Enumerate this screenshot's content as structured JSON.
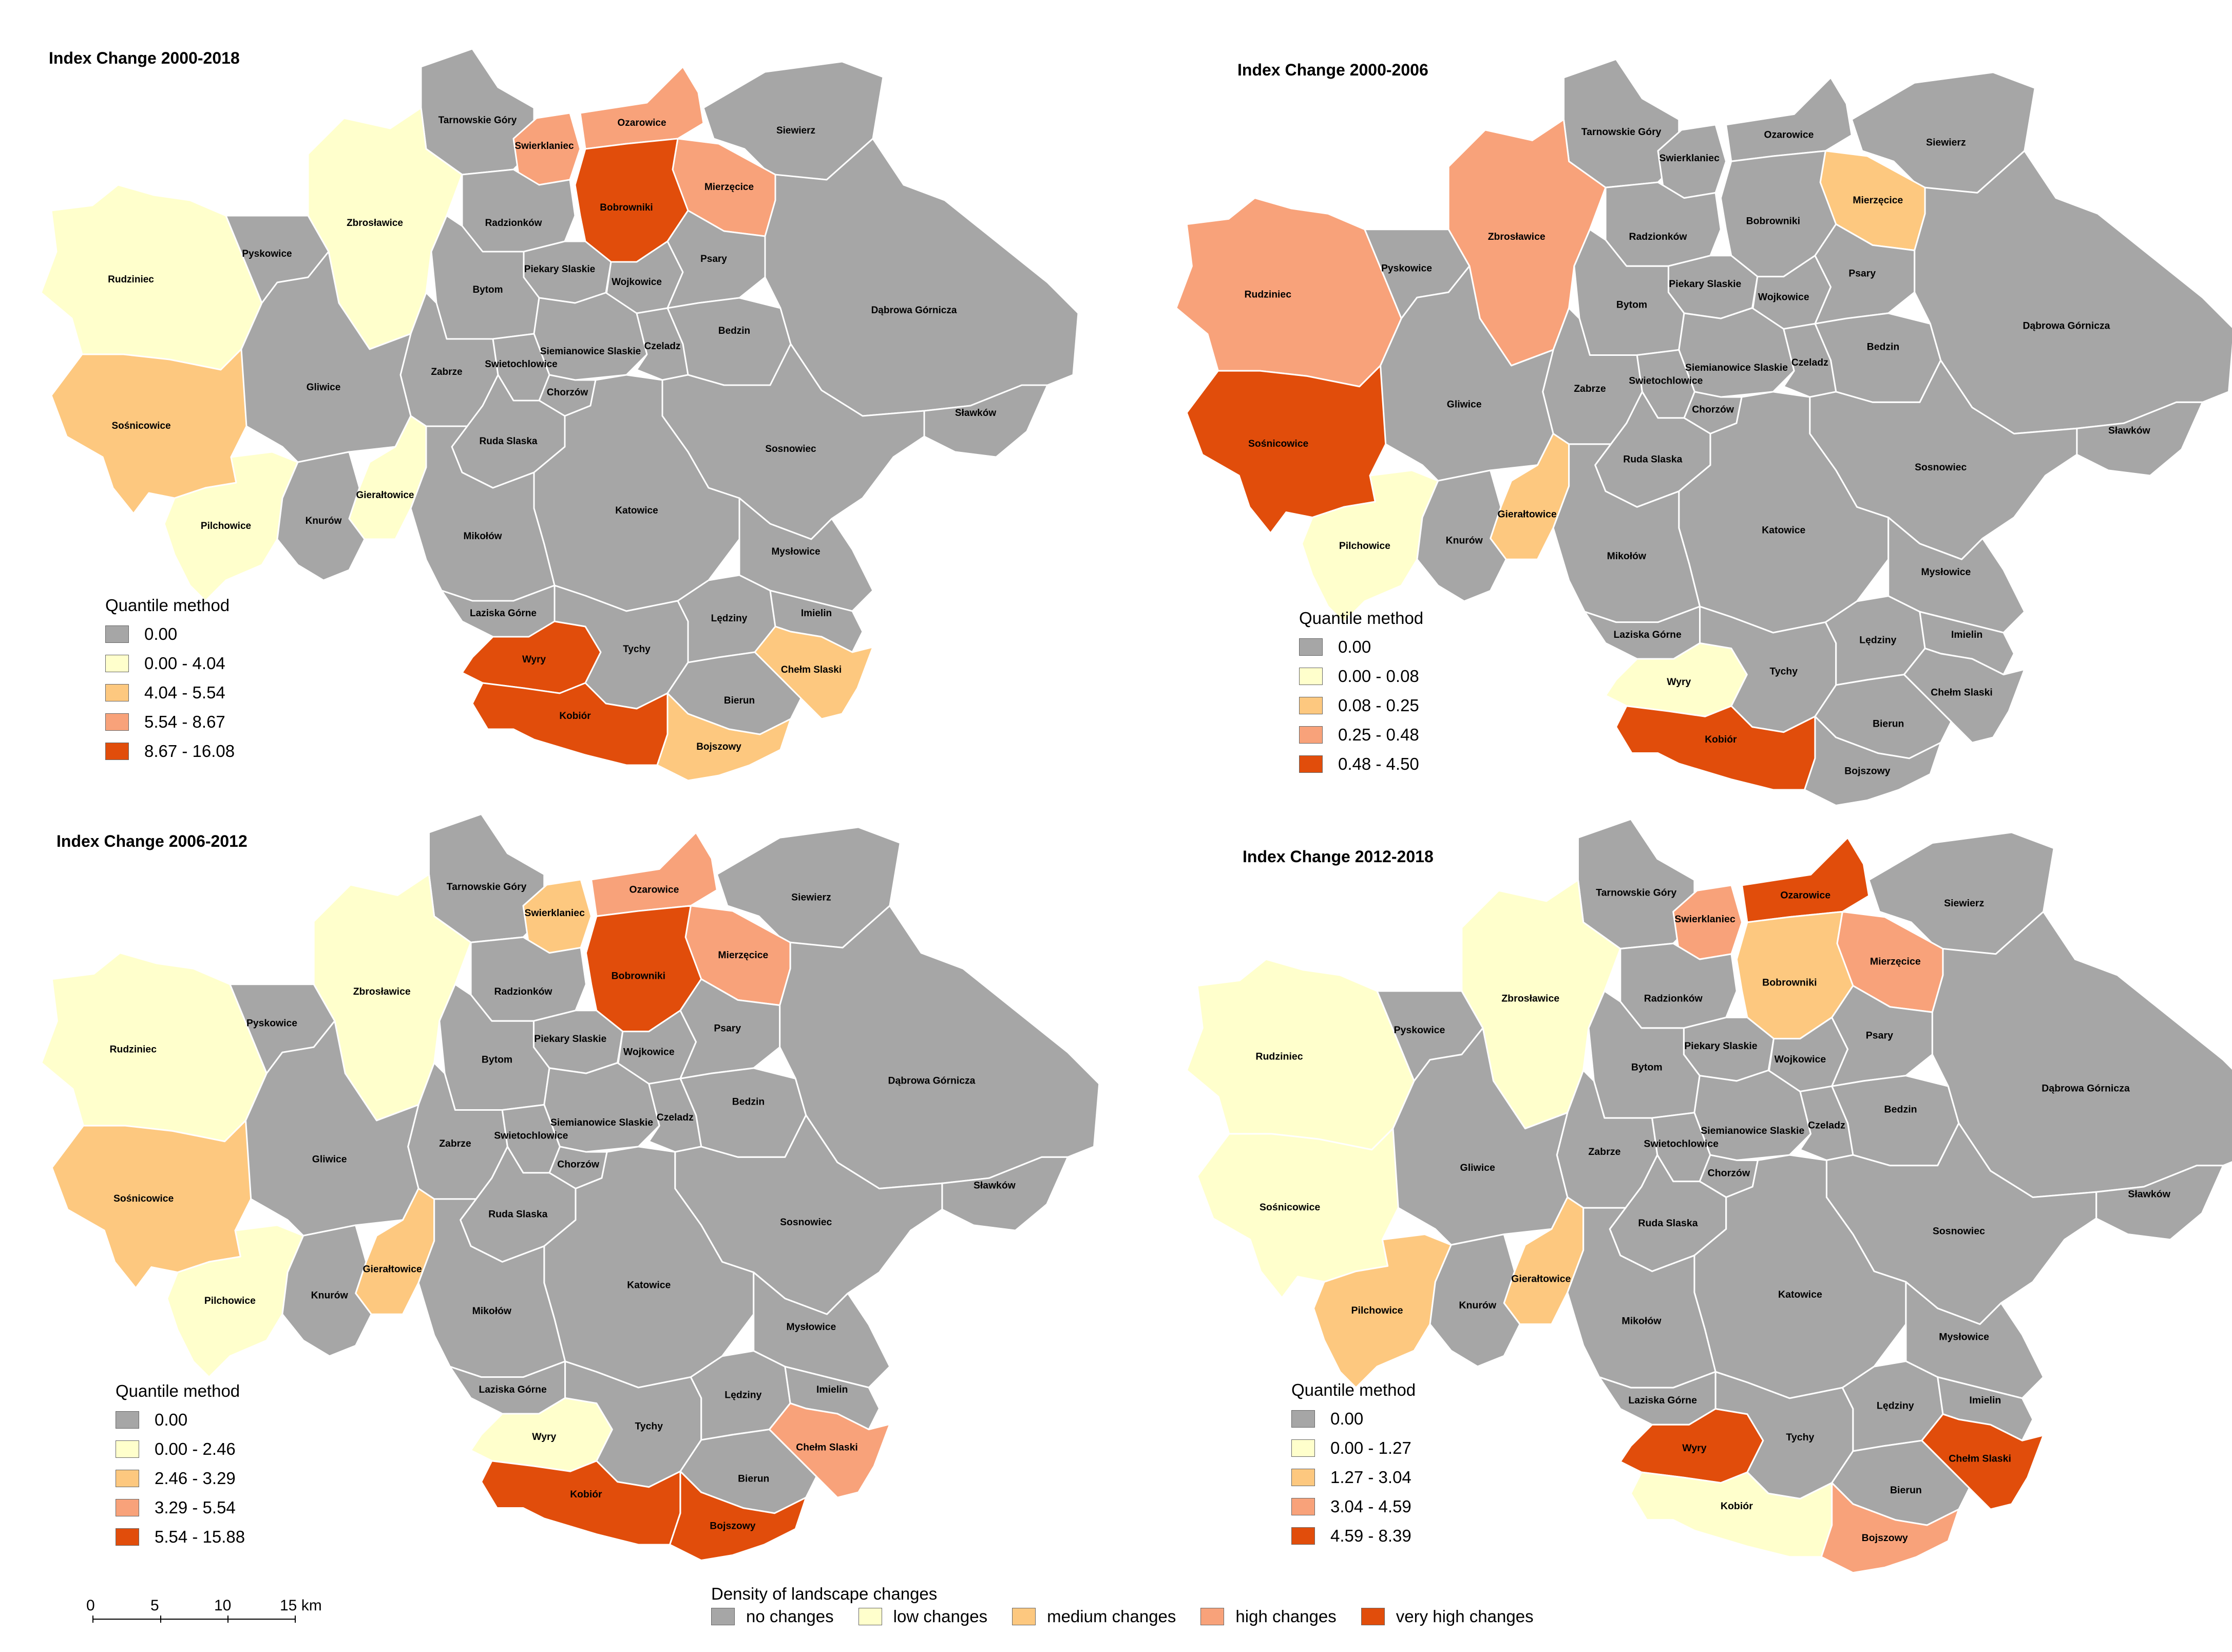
{
  "colors": {
    "none": "#a6a6a6",
    "low": "#ffffcc",
    "medium": "#fdc87f",
    "high": "#f8a27a",
    "veryhigh": "#e14d0b",
    "border": "#ffffff"
  },
  "panels": [
    {
      "title": "Index Change 2000-2018",
      "legend_title": "Quantile method",
      "classes": [
        "0.00",
        "0.00 - 4.04",
        "4.04 - 5.54",
        "5.54 - 8.67",
        "8.67 - 16.08"
      ],
      "values": {
        "Tarnowskie Góry": "none",
        "Swierklaniec": "high",
        "Ozarowice": "high",
        "Siewierz": "none",
        "Mierzęcice": "high",
        "Bobrowniki": "veryhigh",
        "Zbrosławice": "low",
        "Rudziniec": "low",
        "Pyskowice": "none",
        "Radzionków": "none",
        "Piekary Slaskie": "none",
        "Wojkowice": "none",
        "Psary": "none",
        "Bytom": "none",
        "Bedzin": "none",
        "Dąbrowa Górnicza": "none",
        "Zabrze": "none",
        "Gliwice": "none",
        "Siemianowice Slaskie": "none",
        "Czeladz": "none",
        "Swietochlowice": "none",
        "Chorzów": "none",
        "Sławków": "none",
        "Sośnicowice": "medium",
        "Ruda Slaska": "none",
        "Sosnowiec": "none",
        "Gierałtowice": "low",
        "Pilchowice": "low",
        "Knurów": "none",
        "Katowice": "none",
        "Mikołów": "none",
        "Mysłowice": "none",
        "Laziska Górne": "none",
        "Wyry": "veryhigh",
        "Tychy": "none",
        "Lędziny": "none",
        "Imielin": "none",
        "Chełm Slaski": "medium",
        "Bierun": "none",
        "Kobiór": "veryhigh",
        "Bojszowy": "medium"
      }
    },
    {
      "title": "Index Change 2000-2006",
      "legend_title": "Quantile method",
      "classes": [
        "0.00",
        "0.00 - 0.08",
        "0.08 - 0.25",
        "0.25 - 0.48",
        "0.48 - 4.50"
      ],
      "values": {
        "Tarnowskie Góry": "none",
        "Swierklaniec": "none",
        "Ozarowice": "none",
        "Siewierz": "none",
        "Mierzęcice": "medium",
        "Bobrowniki": "none",
        "Zbrosławice": "high",
        "Rudziniec": "high",
        "Pyskowice": "none",
        "Radzionków": "none",
        "Piekary Slaskie": "none",
        "Wojkowice": "none",
        "Psary": "none",
        "Bytom": "none",
        "Bedzin": "none",
        "Dąbrowa Górnicza": "none",
        "Zabrze": "none",
        "Gliwice": "none",
        "Siemianowice Slaskie": "none",
        "Czeladz": "none",
        "Swietochlowice": "none",
        "Chorzów": "none",
        "Sławków": "none",
        "Sośnicowice": "veryhigh",
        "Ruda Slaska": "none",
        "Sosnowiec": "none",
        "Gierałtowice": "medium",
        "Pilchowice": "low",
        "Knurów": "none",
        "Katowice": "none",
        "Mikołów": "none",
        "Mysłowice": "none",
        "Laziska Górne": "none",
        "Wyry": "low",
        "Tychy": "none",
        "Lędziny": "none",
        "Imielin": "none",
        "Chełm Slaski": "none",
        "Bierun": "none",
        "Kobiór": "veryhigh",
        "Bojszowy": "none"
      }
    },
    {
      "title": "Index Change 2006-2012",
      "legend_title": "Quantile method",
      "classes": [
        "0.00",
        "0.00 - 2.46",
        "2.46 - 3.29",
        "3.29 - 5.54",
        "5.54 - 15.88"
      ],
      "values": {
        "Tarnowskie Góry": "none",
        "Swierklaniec": "medium",
        "Ozarowice": "high",
        "Siewierz": "none",
        "Mierzęcice": "high",
        "Bobrowniki": "veryhigh",
        "Zbrosławice": "low",
        "Rudziniec": "low",
        "Pyskowice": "none",
        "Radzionków": "none",
        "Piekary Slaskie": "none",
        "Wojkowice": "none",
        "Psary": "none",
        "Bytom": "none",
        "Bedzin": "none",
        "Dąbrowa Górnicza": "none",
        "Zabrze": "none",
        "Gliwice": "none",
        "Siemianowice Slaskie": "none",
        "Czeladz": "none",
        "Swietochlowice": "none",
        "Chorzów": "none",
        "Sławków": "none",
        "Sośnicowice": "medium",
        "Ruda Slaska": "none",
        "Sosnowiec": "none",
        "Gierałtowice": "medium",
        "Pilchowice": "low",
        "Knurów": "none",
        "Katowice": "none",
        "Mikołów": "none",
        "Mysłowice": "none",
        "Laziska Górne": "none",
        "Wyry": "low",
        "Tychy": "none",
        "Lędziny": "none",
        "Imielin": "none",
        "Chełm Slaski": "high",
        "Bierun": "none",
        "Kobiór": "veryhigh",
        "Bojszowy": "veryhigh"
      }
    },
    {
      "title": "Index Change 2012-2018",
      "legend_title": "Quantile method",
      "classes": [
        "0.00",
        "0.00 - 1.27",
        "1.27 - 3.04",
        "3.04 - 4.59",
        "4.59 - 8.39"
      ],
      "values": {
        "Tarnowskie Góry": "none",
        "Swierklaniec": "high",
        "Ozarowice": "veryhigh",
        "Siewierz": "none",
        "Mierzęcice": "high",
        "Bobrowniki": "medium",
        "Zbrosławice": "low",
        "Rudziniec": "low",
        "Pyskowice": "none",
        "Radzionków": "none",
        "Piekary Slaskie": "none",
        "Wojkowice": "none",
        "Psary": "none",
        "Bytom": "none",
        "Bedzin": "none",
        "Dąbrowa Górnicza": "none",
        "Zabrze": "none",
        "Gliwice": "none",
        "Siemianowice Slaskie": "none",
        "Czeladz": "none",
        "Swietochlowice": "none",
        "Chorzów": "none",
        "Sławków": "none",
        "Sośnicowice": "low",
        "Ruda Slaska": "none",
        "Sosnowiec": "none",
        "Gierałtowice": "medium",
        "Pilchowice": "medium",
        "Knurów": "none",
        "Katowice": "none",
        "Mikołów": "none",
        "Mysłowice": "none",
        "Laziska Górne": "none",
        "Wyry": "veryhigh",
        "Tychy": "none",
        "Lędziny": "none",
        "Imielin": "none",
        "Chełm Slaski": "veryhigh",
        "Bierun": "none",
        "Kobiór": "low",
        "Bojszowy": "high"
      }
    }
  ],
  "scale": {
    "labels": [
      "0",
      "5",
      "10",
      "15 km"
    ]
  },
  "density_legend": {
    "title": "Density of landscape changes",
    "items": [
      {
        "label": "no changes",
        "key": "none"
      },
      {
        "label": "low changes",
        "key": "low"
      },
      {
        "label": "medium changes",
        "key": "medium"
      },
      {
        "label": "high changes",
        "key": "high"
      },
      {
        "label": "very high changes",
        "key": "veryhigh"
      }
    ]
  }
}
